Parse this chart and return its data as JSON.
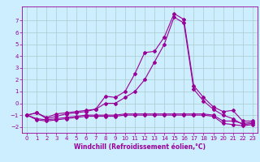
{
  "xlabel": "Windchill (Refroidissement éolien,°C)",
  "bg_color": "#cceeff",
  "line_color": "#990099",
  "grid_color": "#aacccc",
  "xlim": [
    -0.5,
    23.5
  ],
  "ylim": [
    -2.5,
    8.2
  ],
  "yticks": [
    -2,
    -1,
    0,
    1,
    2,
    3,
    4,
    5,
    6,
    7
  ],
  "xticks": [
    0,
    1,
    2,
    3,
    4,
    5,
    6,
    7,
    8,
    9,
    10,
    11,
    12,
    13,
    14,
    15,
    16,
    17,
    18,
    19,
    20,
    21,
    22,
    23
  ],
  "line1_x": [
    0,
    1,
    2,
    3,
    4,
    5,
    6,
    7,
    8,
    9,
    10,
    11,
    12,
    13,
    14,
    15,
    16,
    17,
    18,
    19,
    20,
    21,
    22,
    23
  ],
  "line1_y": [
    -1.0,
    -0.8,
    -1.2,
    -0.9,
    -0.8,
    -0.7,
    -0.6,
    -0.5,
    0.6,
    0.5,
    1.0,
    2.5,
    4.3,
    4.4,
    5.6,
    7.6,
    7.1,
    1.5,
    0.5,
    -0.3,
    -0.7,
    -0.6,
    -1.5,
    -1.5
  ],
  "line2_x": [
    0,
    1,
    2,
    3,
    4,
    5,
    6,
    7,
    8,
    9,
    10,
    11,
    12,
    13,
    14,
    15,
    16,
    17,
    18,
    19,
    20,
    21,
    22,
    23
  ],
  "line2_y": [
    -1.0,
    -0.8,
    -1.3,
    -1.1,
    -0.9,
    -0.8,
    -0.7,
    -0.5,
    0.0,
    0.0,
    0.5,
    1.0,
    2.0,
    3.5,
    5.0,
    7.3,
    6.8,
    1.2,
    0.2,
    -0.5,
    -1.0,
    -1.3,
    -1.8,
    -1.7
  ],
  "line3_x": [
    0,
    1,
    2,
    3,
    4,
    5,
    6,
    7,
    8,
    9,
    10,
    11,
    12,
    13,
    14,
    15,
    16,
    17,
    18,
    19,
    20,
    21,
    22,
    23
  ],
  "line3_y": [
    -1.0,
    -1.3,
    -1.4,
    -1.3,
    -1.2,
    -1.1,
    -1.0,
    -1.0,
    -1.0,
    -1.0,
    -0.9,
    -0.9,
    -0.9,
    -0.9,
    -0.9,
    -0.9,
    -0.9,
    -0.9,
    -0.9,
    -1.0,
    -1.5,
    -1.5,
    -1.7,
    -1.6
  ],
  "line4_x": [
    0,
    1,
    2,
    3,
    4,
    5,
    6,
    7,
    8,
    9,
    10,
    11,
    12,
    13,
    14,
    15,
    16,
    17,
    18,
    19,
    20,
    21,
    22,
    23
  ],
  "line4_y": [
    -1.0,
    -1.4,
    -1.5,
    -1.4,
    -1.3,
    -1.2,
    -1.1,
    -1.1,
    -1.1,
    -1.1,
    -1.0,
    -1.0,
    -1.0,
    -1.0,
    -1.0,
    -1.0,
    -1.0,
    -1.0,
    -1.0,
    -1.1,
    -1.7,
    -1.8,
    -1.9,
    -1.8
  ],
  "tick_fontsize": 5.0,
  "xlabel_fontsize": 5.5,
  "marker_size": 2.0,
  "linewidth": 0.8
}
